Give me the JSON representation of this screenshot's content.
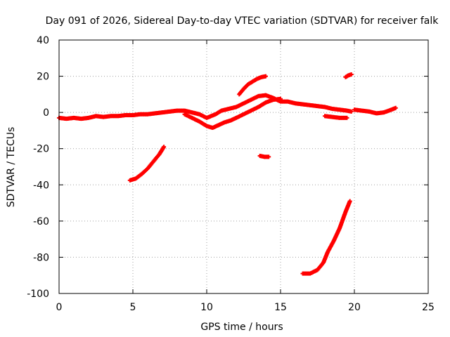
{
  "chart_data": {
    "type": "scatter",
    "title": "Day 091 of 2026, Sidereal Day-to-day VTEC variation (SDTVAR) for receiver falk",
    "xlabel": "GPS time / hours",
    "ylabel": "SDTVAR / TECUs",
    "xlim": [
      0,
      25
    ],
    "ylim": [
      -100,
      40
    ],
    "grid": true,
    "xticks": [
      0,
      5,
      10,
      15,
      20,
      25
    ],
    "yticks": [
      -100,
      -80,
      -60,
      -40,
      -20,
      0,
      20,
      40
    ],
    "xtick_labels": [
      "0",
      "5",
      "10",
      "15",
      "20",
      "25"
    ],
    "ytick_labels": [
      "-100",
      "-80",
      "-60",
      "-40",
      "-20",
      "0",
      "20",
      "40"
    ],
    "marker_color": "#ff0000",
    "series": [
      {
        "name": "track-main-baseline",
        "points": [
          [
            0.0,
            -3
          ],
          [
            0.5,
            -3.5
          ],
          [
            1.0,
            -3
          ],
          [
            1.5,
            -3.5
          ],
          [
            2.0,
            -3
          ],
          [
            2.5,
            -2
          ],
          [
            3.0,
            -2.5
          ],
          [
            3.5,
            -2
          ],
          [
            4.0,
            -2
          ],
          [
            4.5,
            -1.5
          ],
          [
            5.0,
            -1.5
          ],
          [
            5.5,
            -1
          ],
          [
            6.0,
            -1
          ],
          [
            6.5,
            -0.5
          ],
          [
            7.0,
            0
          ],
          [
            7.5,
            0.5
          ],
          [
            8.0,
            1
          ],
          [
            8.5,
            1
          ],
          [
            9.0,
            0
          ],
          [
            9.5,
            -1
          ],
          [
            10.0,
            -3
          ],
          [
            10.3,
            -2
          ],
          [
            10.6,
            -1
          ],
          [
            11.0,
            1
          ],
          [
            11.5,
            2
          ],
          [
            12.0,
            3
          ],
          [
            12.5,
            5
          ],
          [
            13.0,
            7
          ],
          [
            13.5,
            9
          ],
          [
            14.0,
            9.5
          ],
          [
            14.5,
            8
          ],
          [
            15.0,
            6
          ],
          [
            15.5,
            6
          ],
          [
            16.0,
            5
          ],
          [
            16.5,
            4.5
          ],
          [
            17.0,
            4
          ],
          [
            17.5,
            3.5
          ],
          [
            18.0,
            3
          ],
          [
            18.5,
            2
          ],
          [
            19.0,
            1.5
          ],
          [
            19.5,
            1
          ],
          [
            19.8,
            0.5
          ]
        ]
      },
      {
        "name": "track-dip-rise",
        "points": [
          [
            8.5,
            -1
          ],
          [
            9.0,
            -3
          ],
          [
            9.5,
            -5
          ],
          [
            10.0,
            -7.5
          ],
          [
            10.4,
            -8.5
          ],
          [
            10.8,
            -7
          ],
          [
            11.2,
            -5.5
          ],
          [
            11.6,
            -4.5
          ],
          [
            12.0,
            -3
          ],
          [
            12.5,
            -1
          ],
          [
            13.0,
            1
          ],
          [
            13.5,
            3
          ],
          [
            14.0,
            5.5
          ],
          [
            14.5,
            7
          ],
          [
            15.0,
            7.5
          ]
        ]
      },
      {
        "name": "track-upper-arc",
        "points": [
          [
            12.2,
            10
          ],
          [
            12.5,
            13
          ],
          [
            12.8,
            15.5
          ],
          [
            13.1,
            17
          ],
          [
            13.4,
            18.5
          ],
          [
            13.7,
            19.5
          ],
          [
            14.0,
            20
          ]
        ]
      },
      {
        "name": "track-late-baseline",
        "points": [
          [
            20.0,
            1.5
          ],
          [
            20.5,
            1
          ],
          [
            21.0,
            0.5
          ],
          [
            21.5,
            -0.5
          ],
          [
            22.0,
            0
          ],
          [
            22.5,
            1.5
          ],
          [
            22.8,
            2.5
          ]
        ]
      },
      {
        "name": "track-short-lower",
        "points": [
          [
            18.0,
            -2
          ],
          [
            18.5,
            -2.5
          ],
          [
            19.0,
            -3
          ],
          [
            19.5,
            -3
          ]
        ]
      },
      {
        "name": "track-small-upper",
        "points": [
          [
            19.4,
            19.5
          ],
          [
            19.6,
            20.5
          ],
          [
            19.8,
            21
          ]
        ]
      },
      {
        "name": "track-isolated",
        "points": [
          [
            13.6,
            -24
          ],
          [
            13.9,
            -24.5
          ],
          [
            14.2,
            -24.5
          ]
        ]
      },
      {
        "name": "track-left-rise",
        "points": [
          [
            4.8,
            -37.5
          ],
          [
            5.2,
            -36.5
          ],
          [
            5.6,
            -34
          ],
          [
            6.0,
            -31
          ],
          [
            6.4,
            -27
          ],
          [
            6.8,
            -23
          ],
          [
            7.1,
            -19
          ]
        ]
      },
      {
        "name": "track-right-rise",
        "points": [
          [
            16.5,
            -89
          ],
          [
            17.0,
            -89
          ],
          [
            17.5,
            -87
          ],
          [
            17.9,
            -83
          ],
          [
            18.2,
            -77
          ],
          [
            18.6,
            -71
          ],
          [
            19.0,
            -64
          ],
          [
            19.4,
            -55
          ],
          [
            19.7,
            -49
          ]
        ]
      }
    ]
  }
}
